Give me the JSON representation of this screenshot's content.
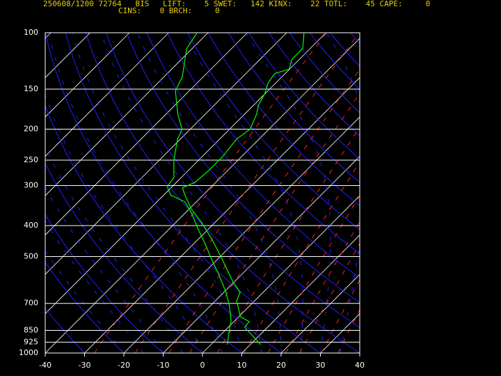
{
  "header": {
    "line1": "250608/1200 72764   BIS   LIFT:    5 SWET:   142 KINX:    22 TOTL:    45 CAPE:     0",
    "line2": "CINS:    0 BRCH:     0"
  },
  "chart_data": {
    "type": "skewt",
    "xlim": [
      -40,
      40
    ],
    "xticks": [
      -40,
      -30,
      -20,
      -10,
      0,
      10,
      20,
      30,
      40
    ],
    "ylim": [
      1000,
      100
    ],
    "ylog": true,
    "yticks": [
      100,
      150,
      200,
      250,
      300,
      400,
      500,
      700,
      850,
      925,
      1000
    ],
    "grid": true,
    "series": [
      {
        "color": "#00ff00",
        "y": [
          942,
          831,
          798,
          770,
          687,
          647,
          600,
          516,
          444,
          392,
          355,
          318,
          305,
          293,
          269,
          244,
          215,
          200,
          180,
          168,
          155,
          144,
          134,
          130,
          121,
          112,
          100
        ],
        "values": [
          12.7,
          4.2,
          3.9,
          0.4,
          -4.6,
          -5.8,
          -10.3,
          -18.2,
          -26.2,
          -33.3,
          -39.5,
          -45.1,
          -47.1,
          -45.3,
          -44.8,
          -44.8,
          -45.7,
          -44.8,
          -46.9,
          -48.8,
          -50.1,
          -51.9,
          -52.7,
          -50.1,
          -51.9,
          -51.9,
          -55.6
        ]
      },
      {
        "color": "#00ff00",
        "y": [
          942,
          831,
          798,
          715,
          647,
          571,
          516,
          456,
          412,
          364,
          337,
          321,
          302,
          283,
          250,
          215,
          200,
          180,
          152,
          137,
          124,
          112,
          100
        ],
        "values": [
          4.2,
          0.4,
          -0.7,
          -5,
          -9.4,
          -15.6,
          -20.9,
          -27.1,
          -32.4,
          -38.6,
          -43,
          -48.3,
          -51.3,
          -51.9,
          -56.3,
          -60.7,
          -62.1,
          -66.9,
          -73.5,
          -75.4,
          -78.4,
          -81.4,
          -82.8
        ]
      }
    ]
  }
}
